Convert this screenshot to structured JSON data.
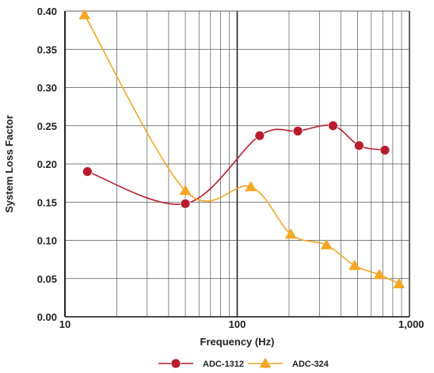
{
  "chart_data": {
    "type": "line",
    "xlabel": "Frequency (Hz)",
    "ylabel": "System Loss Factor",
    "xscale": "log",
    "xlim": [
      10,
      1000
    ],
    "ylim": [
      0,
      0.4
    ],
    "x_tick_labels": [
      "10",
      "100",
      "1,000"
    ],
    "y_tick_labels": [
      "0.00",
      "0.05",
      "0.10",
      "0.15",
      "0.20",
      "0.25",
      "0.30",
      "0.35",
      "0.40"
    ],
    "grid": true,
    "legend_position": "bottom",
    "series": [
      {
        "name": "ADC-1312",
        "color": "#b91c2c",
        "marker": "circle",
        "x": [
          13.5,
          50,
          135,
          225,
          360,
          510,
          720
        ],
        "y": [
          0.19,
          0.148,
          0.237,
          0.243,
          0.25,
          0.224,
          0.218
        ]
      },
      {
        "name": "ADC-324",
        "color": "#f5a623",
        "marker": "triangle",
        "x": [
          13,
          50,
          120,
          205,
          330,
          480,
          670,
          870
        ],
        "y": [
          0.395,
          0.165,
          0.17,
          0.108,
          0.094,
          0.067,
          0.055,
          0.043
        ]
      }
    ]
  }
}
